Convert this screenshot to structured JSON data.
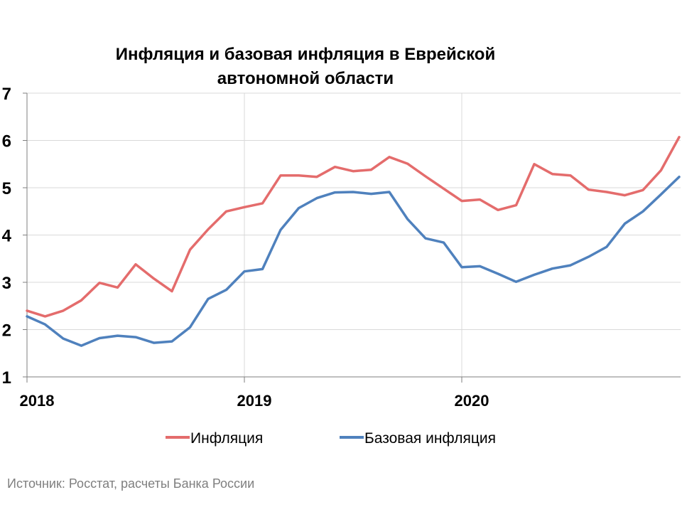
{
  "chart_data": {
    "type": "line",
    "title": [
      "Инфляция и базовая инфляция в Еврейской",
      "автономной области"
    ],
    "ylim": [
      1,
      7
    ],
    "yticks": [
      "1",
      "2",
      "3",
      "4",
      "5",
      "6",
      "7"
    ],
    "xticks": [
      "2018",
      "2019",
      "2020"
    ],
    "grid": true,
    "legend_position": "bottom",
    "source": "Источник: Росстат, расчеты Банка России",
    "x": [
      "2018-01",
      "2018-02",
      "2018-03",
      "2018-04",
      "2018-05",
      "2018-06",
      "2018-07",
      "2018-08",
      "2018-09",
      "2018-10",
      "2018-11",
      "2018-12",
      "2019-01",
      "2019-02",
      "2019-03",
      "2019-04",
      "2019-05",
      "2019-06",
      "2019-07",
      "2019-08",
      "2019-09",
      "2019-10",
      "2019-11",
      "2019-12",
      "2020-01",
      "2020-02",
      "2020-03",
      "2020-04",
      "2020-05",
      "2020-06",
      "2020-07",
      "2020-08",
      "2020-09",
      "2020-10",
      "2020-11",
      "2020-12",
      "2021-01"
    ],
    "series": [
      {
        "name": "Инфляция",
        "color": "#e46c6c",
        "values": [
          2.4,
          2.28,
          2.4,
          2.62,
          2.99,
          2.89,
          3.38,
          3.08,
          2.81,
          3.69,
          4.12,
          4.5,
          4.59,
          4.67,
          5.26,
          5.26,
          5.23,
          5.44,
          5.35,
          5.38,
          5.65,
          5.51,
          5.24,
          4.98,
          4.72,
          4.75,
          4.53,
          4.63,
          5.5,
          5.29,
          5.26,
          4.96,
          4.91,
          4.84,
          4.95,
          5.37,
          6.07
        ]
      },
      {
        "name": "Базовая инфляция",
        "color": "#4f81bd",
        "values": [
          2.28,
          2.11,
          1.81,
          1.66,
          1.82,
          1.87,
          1.84,
          1.72,
          1.75,
          2.05,
          2.65,
          2.84,
          3.23,
          3.28,
          4.11,
          4.57,
          4.78,
          4.9,
          4.91,
          4.87,
          4.91,
          4.34,
          3.93,
          3.84,
          3.32,
          3.34,
          3.18,
          3.01,
          3.16,
          3.29,
          3.36,
          3.54,
          3.75,
          4.24,
          4.5,
          4.86,
          5.23
        ]
      }
    ]
  }
}
